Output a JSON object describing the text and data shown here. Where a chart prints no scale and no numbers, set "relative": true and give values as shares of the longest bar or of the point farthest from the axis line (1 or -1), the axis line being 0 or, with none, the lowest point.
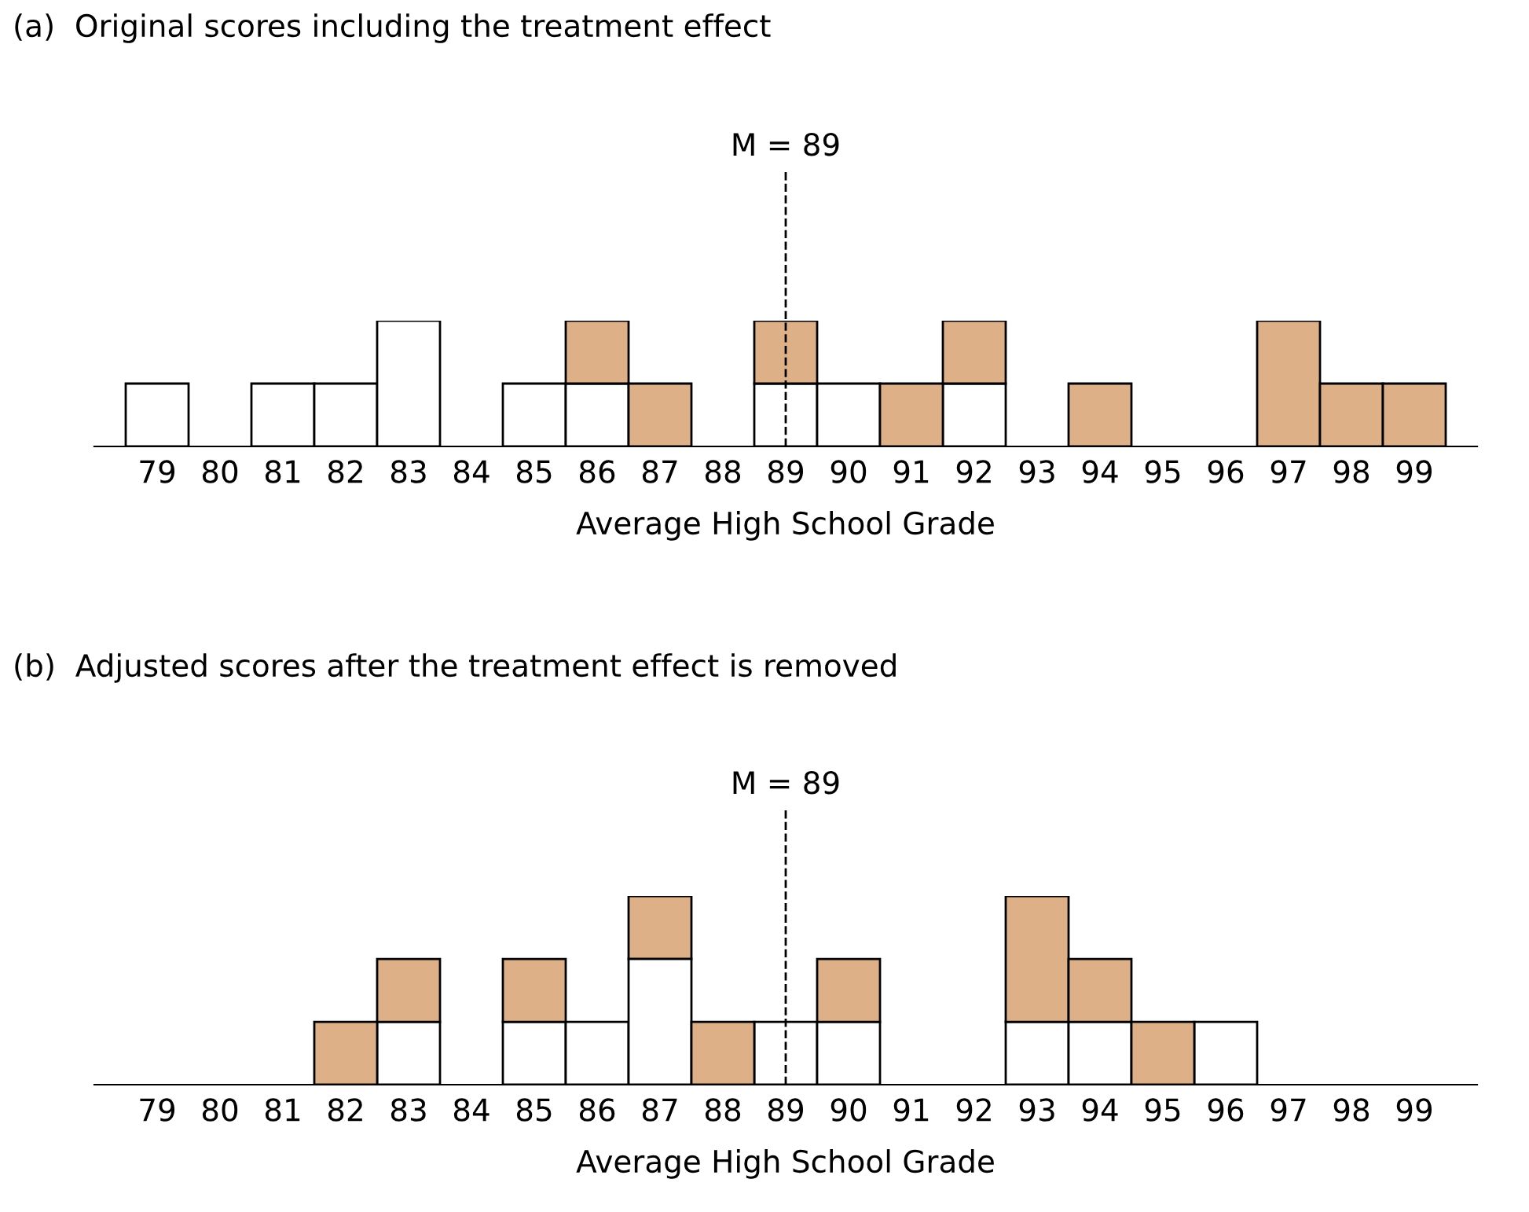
{
  "chart_data": [
    {
      "type": "bar",
      "title": "(a)  Original scores including the treatment effect",
      "xlabel": "Average High School Grade",
      "stacked": true,
      "relative": true,
      "categories": [
        "79",
        "80",
        "81",
        "82",
        "83",
        "84",
        "85",
        "86",
        "87",
        "88",
        "89",
        "90",
        "91",
        "92",
        "93",
        "94",
        "95",
        "96",
        "97",
        "98",
        "99"
      ],
      "series": [
        {
          "color": "#ffffff",
          "values": [
            0.5,
            0,
            0.5,
            0.5,
            1,
            0,
            0.5,
            0.5,
            0,
            0,
            0.5,
            0.5,
            0,
            0.5,
            0,
            0,
            0,
            0,
            0,
            0,
            0
          ]
        },
        {
          "color": "#deb087",
          "values": [
            0,
            0,
            0,
            0,
            0,
            0,
            0,
            0.5,
            0.5,
            0,
            0.5,
            0,
            0.5,
            0.5,
            0,
            0.5,
            0,
            0,
            1,
            0.5,
            0.5
          ]
        }
      ],
      "ref_lines": [
        {
          "axis": "x",
          "value": "89",
          "label": "M = 89",
          "line_style": "dashed"
        }
      ]
    },
    {
      "type": "bar",
      "title": "(b)  Adjusted scores after the treatment effect is removed",
      "xlabel": "Average High School Grade",
      "stacked": true,
      "relative": true,
      "categories": [
        "79",
        "80",
        "81",
        "82",
        "83",
        "84",
        "85",
        "86",
        "87",
        "88",
        "89",
        "90",
        "91",
        "92",
        "93",
        "94",
        "95",
        "96",
        "97",
        "98",
        "99"
      ],
      "series": [
        {
          "color": "#ffffff",
          "values": [
            0,
            0,
            0,
            0,
            0.333,
            0,
            0.333,
            0.333,
            0.667,
            0,
            0.333,
            0.333,
            0,
            0,
            0.333,
            0.333,
            0,
            0.333,
            0,
            0,
            0
          ]
        },
        {
          "color": "#deb087",
          "values": [
            0,
            0,
            0,
            0.333,
            0.333,
            0,
            0.333,
            0,
            0.333,
            0.333,
            0,
            0.333,
            0,
            0,
            0.667,
            0.333,
            0.333,
            0,
            0,
            0,
            0
          ]
        }
      ],
      "ref_lines": [
        {
          "axis": "x",
          "value": "89",
          "label": "M = 89",
          "line_style": "dashed"
        }
      ]
    }
  ]
}
